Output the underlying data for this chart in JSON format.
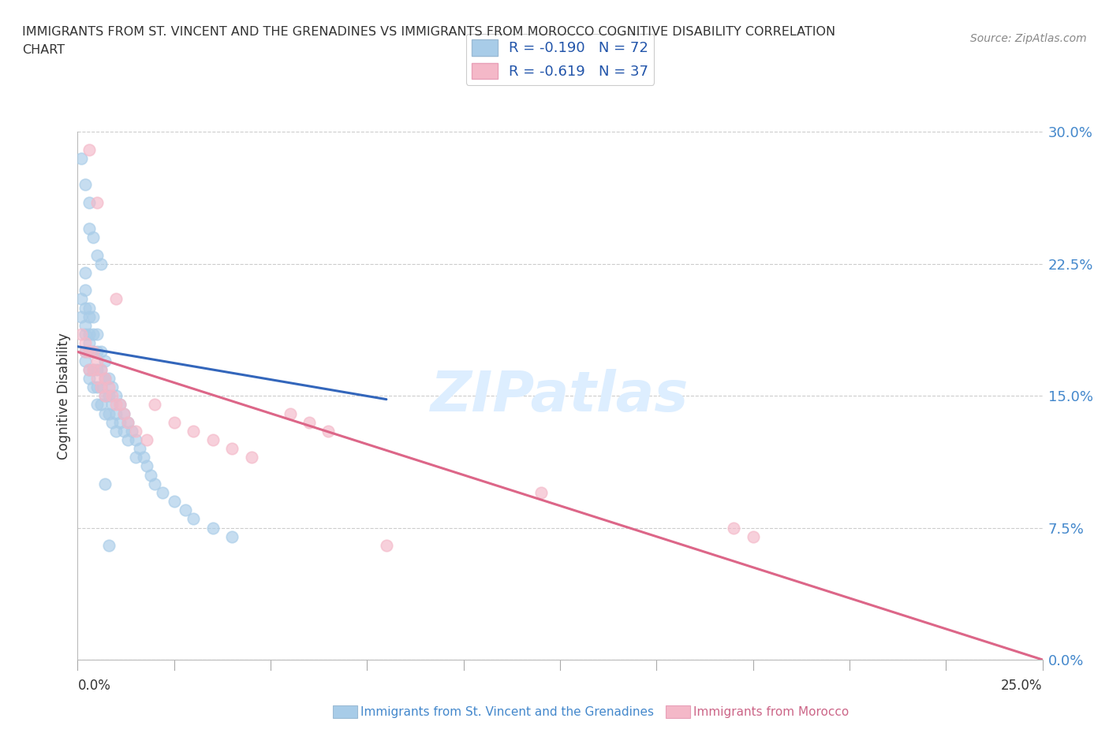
{
  "title_line1": "IMMIGRANTS FROM ST. VINCENT AND THE GRENADINES VS IMMIGRANTS FROM MOROCCO COGNITIVE DISABILITY CORRELATION",
  "title_line2": "CHART",
  "source": "Source: ZipAtlas.com",
  "ylabel": "Cognitive Disability",
  "legend_r1": "R = -0.190   N = 72",
  "legend_r2": "R = -0.619   N = 37",
  "legend_label1": "Immigrants from St. Vincent and the Grenadines",
  "legend_label2": "Immigrants from Morocco",
  "ytick_vals": [
    0.0,
    0.075,
    0.15,
    0.225,
    0.3
  ],
  "xlim": [
    0.0,
    0.25
  ],
  "ylim": [
    0.0,
    0.3
  ],
  "color_blue": "#a8cce8",
  "color_pink": "#f4b8c8",
  "line_blue": "#3366bb",
  "line_pink": "#dd6688",
  "line_dashed_color": "#aaccee",
  "background": "#ffffff",
  "watermark_color": "#ddeeff",
  "blue_x": [
    0.001,
    0.001,
    0.002,
    0.002,
    0.002,
    0.002,
    0.002,
    0.002,
    0.002,
    0.003,
    0.003,
    0.003,
    0.003,
    0.003,
    0.003,
    0.003,
    0.004,
    0.004,
    0.004,
    0.004,
    0.004,
    0.005,
    0.005,
    0.005,
    0.005,
    0.005,
    0.006,
    0.006,
    0.006,
    0.006,
    0.007,
    0.007,
    0.007,
    0.007,
    0.008,
    0.008,
    0.008,
    0.009,
    0.009,
    0.009,
    0.01,
    0.01,
    0.01,
    0.011,
    0.011,
    0.012,
    0.012,
    0.013,
    0.013,
    0.014,
    0.015,
    0.015,
    0.016,
    0.017,
    0.018,
    0.019,
    0.02,
    0.022,
    0.025,
    0.028,
    0.03,
    0.035,
    0.04,
    0.001,
    0.002,
    0.003,
    0.003,
    0.004,
    0.005,
    0.006,
    0.007,
    0.008
  ],
  "blue_y": [
    0.205,
    0.195,
    0.22,
    0.21,
    0.2,
    0.19,
    0.185,
    0.175,
    0.17,
    0.2,
    0.195,
    0.185,
    0.18,
    0.175,
    0.165,
    0.16,
    0.195,
    0.185,
    0.175,
    0.165,
    0.155,
    0.185,
    0.175,
    0.165,
    0.155,
    0.145,
    0.175,
    0.165,
    0.155,
    0.145,
    0.17,
    0.16,
    0.15,
    0.14,
    0.16,
    0.15,
    0.14,
    0.155,
    0.145,
    0.135,
    0.15,
    0.14,
    0.13,
    0.145,
    0.135,
    0.14,
    0.13,
    0.135,
    0.125,
    0.13,
    0.125,
    0.115,
    0.12,
    0.115,
    0.11,
    0.105,
    0.1,
    0.095,
    0.09,
    0.085,
    0.08,
    0.075,
    0.07,
    0.285,
    0.27,
    0.26,
    0.245,
    0.24,
    0.23,
    0.225,
    0.1,
    0.065
  ],
  "pink_x": [
    0.001,
    0.002,
    0.002,
    0.003,
    0.003,
    0.004,
    0.004,
    0.005,
    0.005,
    0.006,
    0.006,
    0.007,
    0.007,
    0.008,
    0.009,
    0.01,
    0.011,
    0.012,
    0.013,
    0.015,
    0.018,
    0.02,
    0.025,
    0.03,
    0.035,
    0.04,
    0.045,
    0.055,
    0.06,
    0.065,
    0.17,
    0.175,
    0.003,
    0.005,
    0.01,
    0.08,
    0.12
  ],
  "pink_y": [
    0.185,
    0.18,
    0.175,
    0.175,
    0.165,
    0.175,
    0.165,
    0.17,
    0.16,
    0.165,
    0.155,
    0.16,
    0.15,
    0.155,
    0.15,
    0.145,
    0.145,
    0.14,
    0.135,
    0.13,
    0.125,
    0.145,
    0.135,
    0.13,
    0.125,
    0.12,
    0.115,
    0.14,
    0.135,
    0.13,
    0.075,
    0.07,
    0.29,
    0.26,
    0.205,
    0.065,
    0.095
  ],
  "blue_line_x": [
    0.0,
    0.08
  ],
  "blue_line_y": [
    0.178,
    0.148
  ],
  "pink_line_x": [
    0.0,
    0.25
  ],
  "pink_line_y": [
    0.175,
    0.0
  ],
  "dashed_line_x": [
    0.0,
    0.25
  ],
  "dashed_line_y": [
    0.175,
    0.0
  ]
}
